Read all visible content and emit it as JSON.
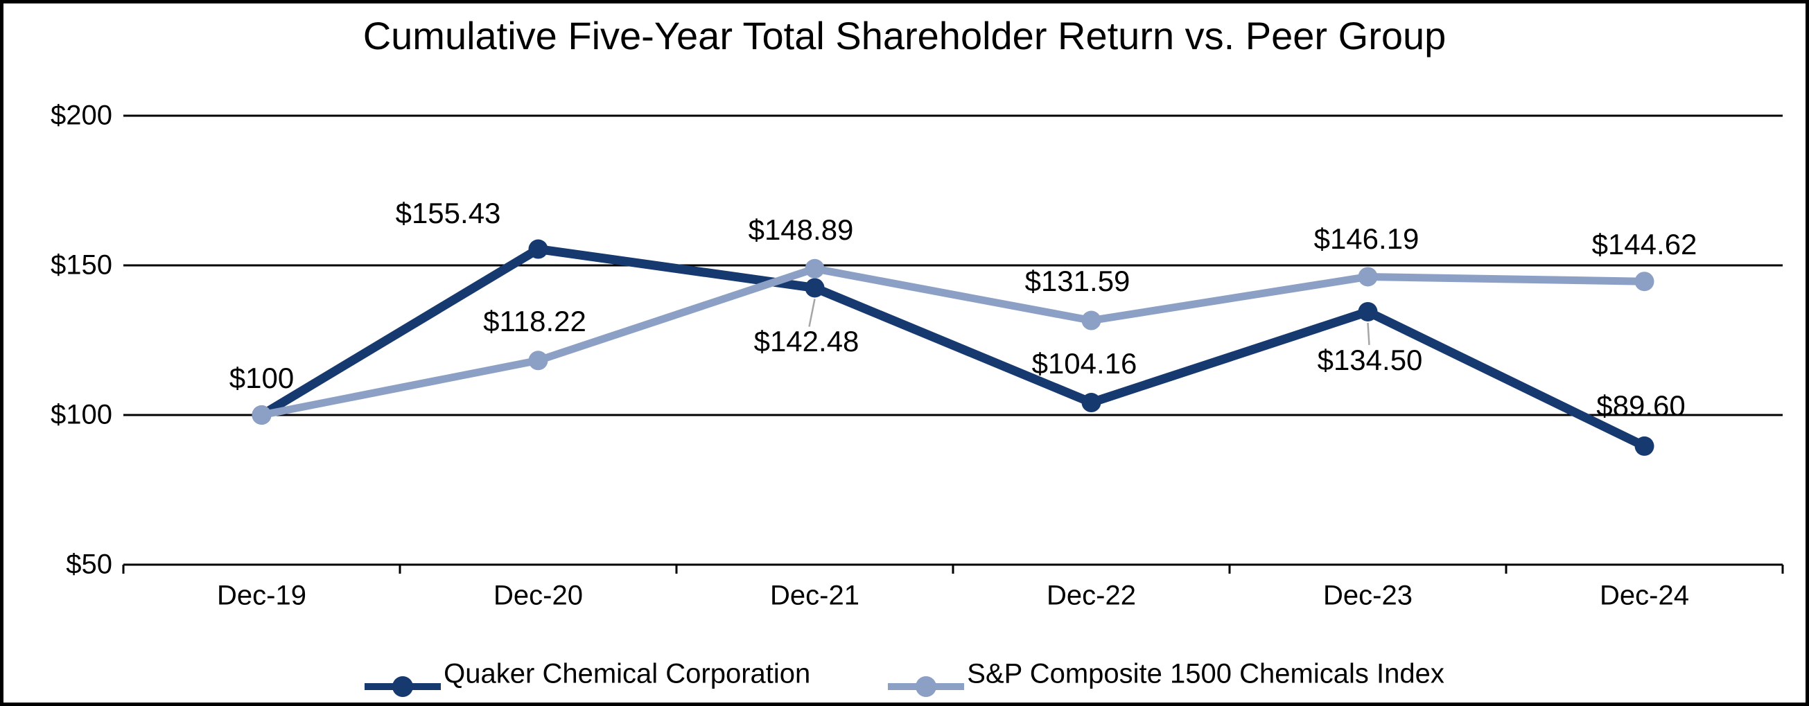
{
  "chart_data": {
    "type": "line",
    "title": "Cumulative Five-Year Total Shareholder Return vs. Peer Group",
    "categories": [
      "Dec-19",
      "Dec-20",
      "Dec-21",
      "Dec-22",
      "Dec-23",
      "Dec-24"
    ],
    "series": [
      {
        "name": "Quaker Chemical Corporation",
        "color": "#16396F",
        "values": [
          100,
          155.43,
          142.48,
          104.16,
          134.5,
          89.6
        ],
        "point_labels": [
          "$100",
          "$155.43",
          "$142.48",
          "$104.16",
          "$134.50",
          "$89.60"
        ]
      },
      {
        "name": "S&P Composite 1500 Chemicals Index",
        "color": "#8CA0C6",
        "values": [
          100,
          118.22,
          148.89,
          131.59,
          146.19,
          144.62
        ],
        "point_labels": [
          "",
          "$118.22",
          "$148.89",
          "$131.59",
          "$146.19",
          "$144.62"
        ]
      }
    ],
    "y_axis": {
      "min": 50,
      "max": 200,
      "ticks": [
        "$200",
        "$150",
        "$100",
        "$50"
      ],
      "tick_values": [
        200,
        150,
        100,
        50
      ]
    },
    "grid": true,
    "legend_position": "bottom",
    "colors": {
      "axis": "#000000",
      "leader_line": "#A6A6A6",
      "background": "#FFFFFF",
      "border": "#000000"
    }
  }
}
